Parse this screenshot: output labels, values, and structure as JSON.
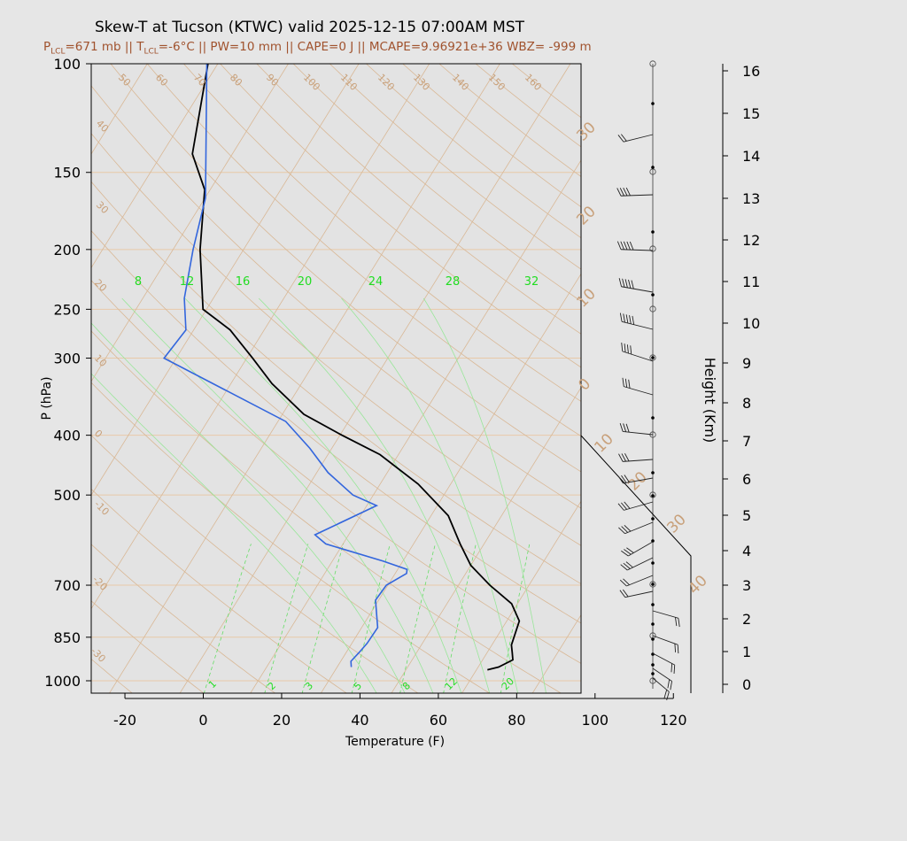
{
  "header": {
    "title": "Skew-T at Tucson (KTWC) valid 2025-12-15 07:00AM MST",
    "p_lcl_label": "P",
    "p_lcl_sub": "LCL",
    "p_lcl_value": "=671 mb || T",
    "t_lcl_sub": "LCL",
    "t_lcl_value": "=-6°C || PW=10 mm || CAPE=0 J || MCAPE=9.96921e+36 WBZ= -999 m"
  },
  "chart_data": {
    "type": "line",
    "subtype": "skew-t log-p",
    "xlabel": "Temperature (F)",
    "ylabel": "P (hPa)",
    "y2label": "Height (Km)",
    "pressure_ticks": [
      100,
      150,
      200,
      250,
      300,
      400,
      500,
      700,
      850,
      1000
    ],
    "temperature_ticks": [
      -20,
      0,
      20,
      40,
      60,
      80,
      100,
      120
    ],
    "height_ticks": [
      0,
      1,
      2,
      3,
      4,
      5,
      6,
      7,
      8,
      9,
      10,
      11,
      12,
      13,
      14,
      15,
      16
    ],
    "dry_adiabat_labels": [
      "50",
      "60",
      "70",
      "80",
      "90",
      "100",
      "110",
      "120",
      "130",
      "140",
      "150",
      "160"
    ],
    "isotherm_labels": [
      "40",
      "30",
      "20",
      "10",
      "0",
      "-10",
      "-20",
      "-30"
    ],
    "isotherm_labels_right": [
      "30",
      "20",
      "10",
      "0",
      "10",
      "20",
      "30",
      "40"
    ],
    "mixing_ratio_labels_top": [
      "8",
      "12",
      "16",
      "20",
      "24",
      "28",
      "32"
    ],
    "mixing_ratio_labels_bottom": [
      "1",
      "2",
      "3",
      "5",
      "8",
      "12",
      "20"
    ],
    "series": [
      {
        "role": "temperature",
        "color": "#000000",
        "points_p_tf": [
          [
            960,
            70.8
          ],
          [
            950,
            73.2
          ],
          [
            925,
            75.7
          ],
          [
            900,
            74.4
          ],
          [
            875,
            73.0
          ],
          [
            800,
            71.2
          ],
          [
            750,
            66.5
          ],
          [
            700,
            58.0
          ],
          [
            650,
            50.0
          ],
          [
            600,
            43.9
          ],
          [
            540,
            36.4
          ],
          [
            480,
            23.7
          ],
          [
            430,
            9.3
          ],
          [
            400,
            -3.5
          ],
          [
            370,
            -16.5
          ],
          [
            330,
            -29.5
          ],
          [
            300,
            -38.5
          ],
          [
            270,
            -48.7
          ],
          [
            250,
            -58.9
          ],
          [
            200,
            -69.1
          ],
          [
            160,
            -77.4
          ],
          [
            140,
            -86.2
          ],
          [
            100,
            -96.5
          ]
        ]
      },
      {
        "role": "dewpoint",
        "color": "#3366dd",
        "points_p_tf": [
          [
            950,
            35.6
          ],
          [
            930,
            34.6
          ],
          [
            900,
            35.3
          ],
          [
            870,
            35.9
          ],
          [
            820,
            36.1
          ],
          [
            780,
            33.7
          ],
          [
            740,
            31.2
          ],
          [
            700,
            31.6
          ],
          [
            670,
            34.9
          ],
          [
            660,
            34.4
          ],
          [
            640,
            27.0
          ],
          [
            600,
            9.6
          ],
          [
            580,
            5.4
          ],
          [
            520,
            16.5
          ],
          [
            500,
            8.8
          ],
          [
            460,
            -1.1
          ],
          [
            420,
            -9.6
          ],
          [
            380,
            -20.0
          ],
          [
            300,
            -61.1
          ],
          [
            270,
            -60.0
          ],
          [
            240,
            -65.4
          ],
          [
            200,
            -70.9
          ],
          [
            165,
            -75.9
          ],
          [
            100,
            -96.8
          ]
        ]
      }
    ],
    "wind_barb_column": "present, 0-16 km",
    "xlim": [
      -28,
      124
    ],
    "ylim": [
      1050,
      100
    ]
  }
}
